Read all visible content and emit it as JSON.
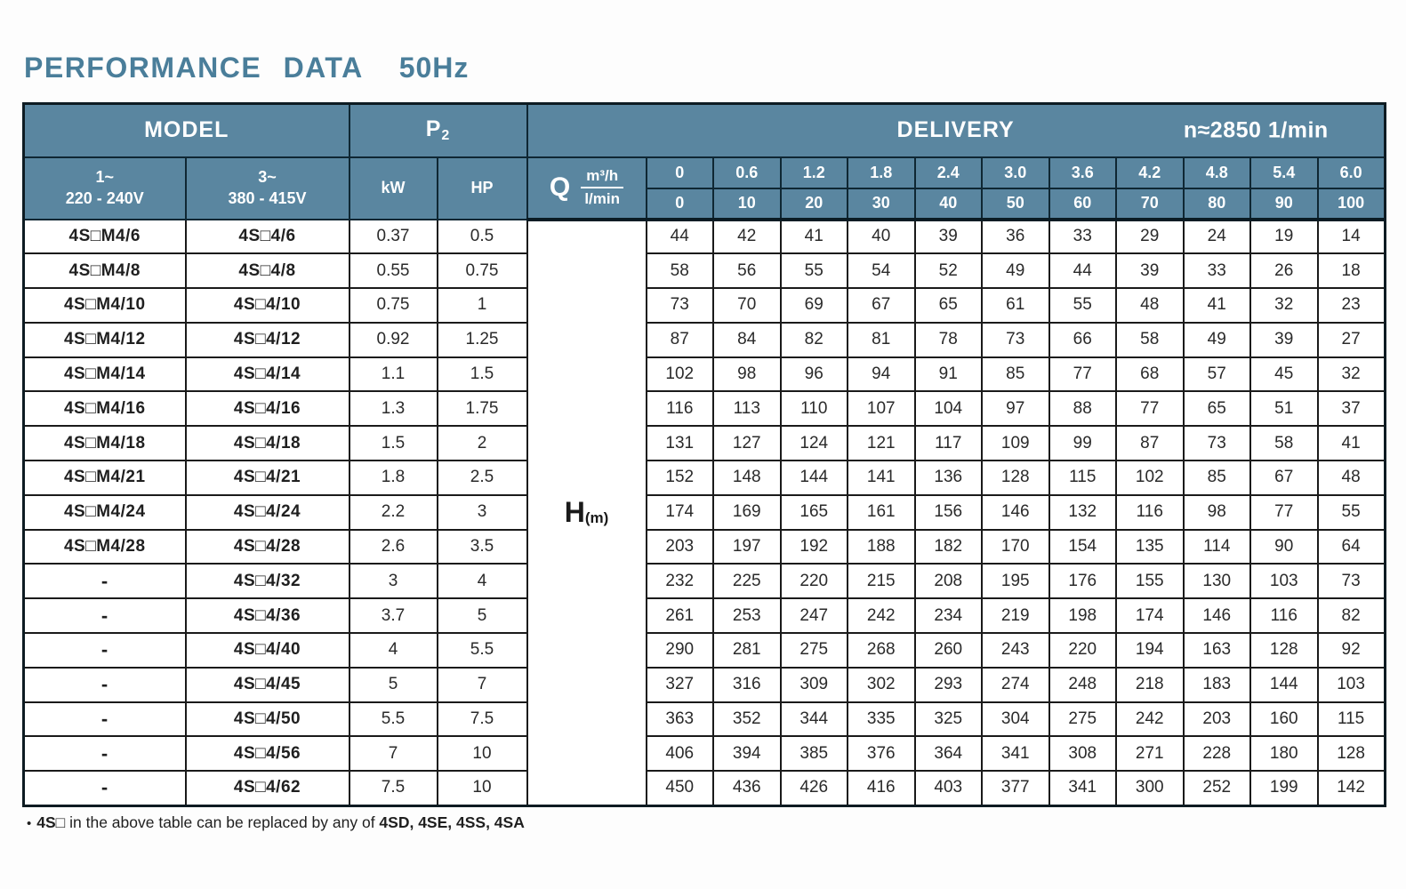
{
  "title": {
    "main": "PERFORMANCE DATA",
    "freq": "50Hz"
  },
  "table": {
    "header": {
      "model": "MODEL",
      "p2_base": "P",
      "p2_sub": "2",
      "delivery": "DELIVERY",
      "speed": "n≈2850 1/min",
      "phase1_line1": "1~",
      "phase1_line2": "220 - 240V",
      "phase3_line1": "3~",
      "phase3_line2": "380 - 415V",
      "kw": "kW",
      "hp": "HP",
      "q": "Q",
      "m3h": "m³/h",
      "lmin": "l/min",
      "m3h_values": [
        "0",
        "0.6",
        "1.2",
        "1.8",
        "2.4",
        "3.0",
        "3.6",
        "4.2",
        "4.8",
        "5.4",
        "6.0"
      ],
      "lmin_values": [
        "0",
        "10",
        "20",
        "30",
        "40",
        "50",
        "60",
        "70",
        "80",
        "90",
        "100"
      ],
      "head_label": "H",
      "head_unit": "(m)"
    },
    "rows": [
      {
        "model_1ph": "4S□M4/6",
        "model_3ph": "4S□4/6",
        "kw": "0.37",
        "hp": "0.5",
        "head_m": [
          "44",
          "42",
          "41",
          "40",
          "39",
          "36",
          "33",
          "29",
          "24",
          "19",
          "14"
        ]
      },
      {
        "model_1ph": "4S□M4/8",
        "model_3ph": "4S□4/8",
        "kw": "0.55",
        "hp": "0.75",
        "head_m": [
          "58",
          "56",
          "55",
          "54",
          "52",
          "49",
          "44",
          "39",
          "33",
          "26",
          "18"
        ]
      },
      {
        "model_1ph": "4S□M4/10",
        "model_3ph": "4S□4/10",
        "kw": "0.75",
        "hp": "1",
        "head_m": [
          "73",
          "70",
          "69",
          "67",
          "65",
          "61",
          "55",
          "48",
          "41",
          "32",
          "23"
        ]
      },
      {
        "model_1ph": "4S□M4/12",
        "model_3ph": "4S□4/12",
        "kw": "0.92",
        "hp": "1.25",
        "head_m": [
          "87",
          "84",
          "82",
          "81",
          "78",
          "73",
          "66",
          "58",
          "49",
          "39",
          "27"
        ]
      },
      {
        "model_1ph": "4S□M4/14",
        "model_3ph": "4S□4/14",
        "kw": "1.1",
        "hp": "1.5",
        "head_m": [
          "102",
          "98",
          "96",
          "94",
          "91",
          "85",
          "77",
          "68",
          "57",
          "45",
          "32"
        ]
      },
      {
        "model_1ph": "4S□M4/16",
        "model_3ph": "4S□4/16",
        "kw": "1.3",
        "hp": "1.75",
        "head_m": [
          "116",
          "113",
          "110",
          "107",
          "104",
          "97",
          "88",
          "77",
          "65",
          "51",
          "37"
        ]
      },
      {
        "model_1ph": "4S□M4/18",
        "model_3ph": "4S□4/18",
        "kw": "1.5",
        "hp": "2",
        "head_m": [
          "131",
          "127",
          "124",
          "121",
          "117",
          "109",
          "99",
          "87",
          "73",
          "58",
          "41"
        ]
      },
      {
        "model_1ph": "4S□M4/21",
        "model_3ph": "4S□4/21",
        "kw": "1.8",
        "hp": "2.5",
        "head_m": [
          "152",
          "148",
          "144",
          "141",
          "136",
          "128",
          "115",
          "102",
          "85",
          "67",
          "48"
        ]
      },
      {
        "model_1ph": "4S□M4/24",
        "model_3ph": "4S□4/24",
        "kw": "2.2",
        "hp": "3",
        "head_m": [
          "174",
          "169",
          "165",
          "161",
          "156",
          "146",
          "132",
          "116",
          "98",
          "77",
          "55"
        ]
      },
      {
        "model_1ph": "4S□M4/28",
        "model_3ph": "4S□4/28",
        "kw": "2.6",
        "hp": "3.5",
        "head_m": [
          "203",
          "197",
          "192",
          "188",
          "182",
          "170",
          "154",
          "135",
          "114",
          "90",
          "64"
        ]
      },
      {
        "model_1ph": "-",
        "model_3ph": "4S□4/32",
        "kw": "3",
        "hp": "4",
        "head_m": [
          "232",
          "225",
          "220",
          "215",
          "208",
          "195",
          "176",
          "155",
          "130",
          "103",
          "73"
        ]
      },
      {
        "model_1ph": "-",
        "model_3ph": "4S□4/36",
        "kw": "3.7",
        "hp": "5",
        "head_m": [
          "261",
          "253",
          "247",
          "242",
          "234",
          "219",
          "198",
          "174",
          "146",
          "116",
          "82"
        ]
      },
      {
        "model_1ph": "-",
        "model_3ph": "4S□4/40",
        "kw": "4",
        "hp": "5.5",
        "head_m": [
          "290",
          "281",
          "275",
          "268",
          "260",
          "243",
          "220",
          "194",
          "163",
          "128",
          "92"
        ]
      },
      {
        "model_1ph": "-",
        "model_3ph": "4S□4/45",
        "kw": "5",
        "hp": "7",
        "head_m": [
          "327",
          "316",
          "309",
          "302",
          "293",
          "274",
          "248",
          "218",
          "183",
          "144",
          "103"
        ]
      },
      {
        "model_1ph": "-",
        "model_3ph": "4S□4/50",
        "kw": "5.5",
        "hp": "7.5",
        "head_m": [
          "363",
          "352",
          "344",
          "335",
          "325",
          "304",
          "275",
          "242",
          "203",
          "160",
          "115"
        ]
      },
      {
        "model_1ph": "-",
        "model_3ph": "4S□4/56",
        "kw": "7",
        "hp": "10",
        "head_m": [
          "406",
          "394",
          "385",
          "376",
          "364",
          "341",
          "308",
          "271",
          "228",
          "180",
          "128"
        ]
      },
      {
        "model_1ph": "-",
        "model_3ph": "4S□4/62",
        "kw": "7.5",
        "hp": "10",
        "head_m": [
          "450",
          "436",
          "426",
          "416",
          "403",
          "377",
          "341",
          "300",
          "252",
          "199",
          "142"
        ]
      }
    ]
  },
  "footnote": {
    "bullet": "•",
    "code": "4S□",
    "text": " in the above table can be replaced by any of ",
    "models": "4SD, 4SE, 4SS, 4SA"
  },
  "colors": {
    "header_bg": "#5a86a0",
    "header_text": "#ffffff",
    "title_text": "#4a7e9a",
    "header_grid": "#0f2733",
    "body_grid": "#1a1a1a",
    "body_text": "#1f1f1f"
  }
}
